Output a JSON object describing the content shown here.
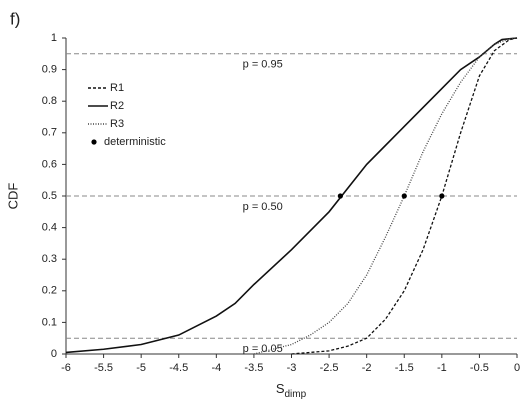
{
  "chart_data": {
    "type": "line",
    "panel_label": "f)",
    "ylabel": "CDF",
    "xlabel": [
      "S",
      "dimp"
    ],
    "xlim": [
      -6,
      0
    ],
    "ylim": [
      0,
      1
    ],
    "xticks": [
      -6,
      -5.5,
      -5,
      -4.5,
      -4,
      -3.5,
      -3,
      -2.5,
      -2,
      -1.5,
      -1,
      -0.5,
      0
    ],
    "yticks": [
      0,
      0.1,
      0.2,
      0.3,
      0.4,
      0.5,
      0.6,
      0.7,
      0.8,
      0.9,
      1
    ],
    "legend": "upper-left",
    "reference_lines": [
      {
        "value": 0.95,
        "label": "p = 0.95"
      },
      {
        "value": 0.5,
        "label": "p = 0.50"
      },
      {
        "value": 0.05,
        "label": "p = 0.05"
      }
    ],
    "series": [
      {
        "name": "R1",
        "color": "#111111",
        "dash": "3,2",
        "x": [
          -3,
          -2.5,
          -2.25,
          -2,
          -1.75,
          -1.5,
          -1.25,
          -1,
          -0.75,
          -0.5,
          -0.3,
          -0.1,
          0
        ],
        "values": [
          0,
          0.01,
          0.025,
          0.05,
          0.11,
          0.2,
          0.33,
          0.5,
          0.7,
          0.88,
          0.96,
          0.995,
          1
        ]
      },
      {
        "name": "R2",
        "color": "#111111",
        "dash": "none",
        "x": [
          -6,
          -5.5,
          -5,
          -4.5,
          -4,
          -3.75,
          -3.5,
          -3,
          -2.5,
          -2,
          -1.5,
          -1,
          -0.75,
          -0.5,
          -0.3,
          -0.2,
          0
        ],
        "values": [
          0.005,
          0.015,
          0.03,
          0.06,
          0.12,
          0.16,
          0.22,
          0.33,
          0.45,
          0.6,
          0.72,
          0.84,
          0.9,
          0.94,
          0.98,
          0.995,
          1
        ]
      },
      {
        "name": "R3",
        "color": "#444444",
        "dash": "1,1.5",
        "x": [
          -3.5,
          -3,
          -2.75,
          -2.5,
          -2.25,
          -2,
          -1.75,
          -1.5,
          -1.25,
          -1,
          -0.75,
          -0.5,
          -0.3,
          -0.1,
          0
        ],
        "values": [
          0,
          0.03,
          0.06,
          0.1,
          0.16,
          0.25,
          0.37,
          0.5,
          0.64,
          0.76,
          0.86,
          0.94,
          0.98,
          0.998,
          1
        ]
      }
    ],
    "points": {
      "name": "deterministic",
      "color": "#000000",
      "x": [
        -2.35,
        -1.5,
        -1
      ],
      "values": [
        0.5,
        0.5,
        0.5
      ]
    }
  }
}
